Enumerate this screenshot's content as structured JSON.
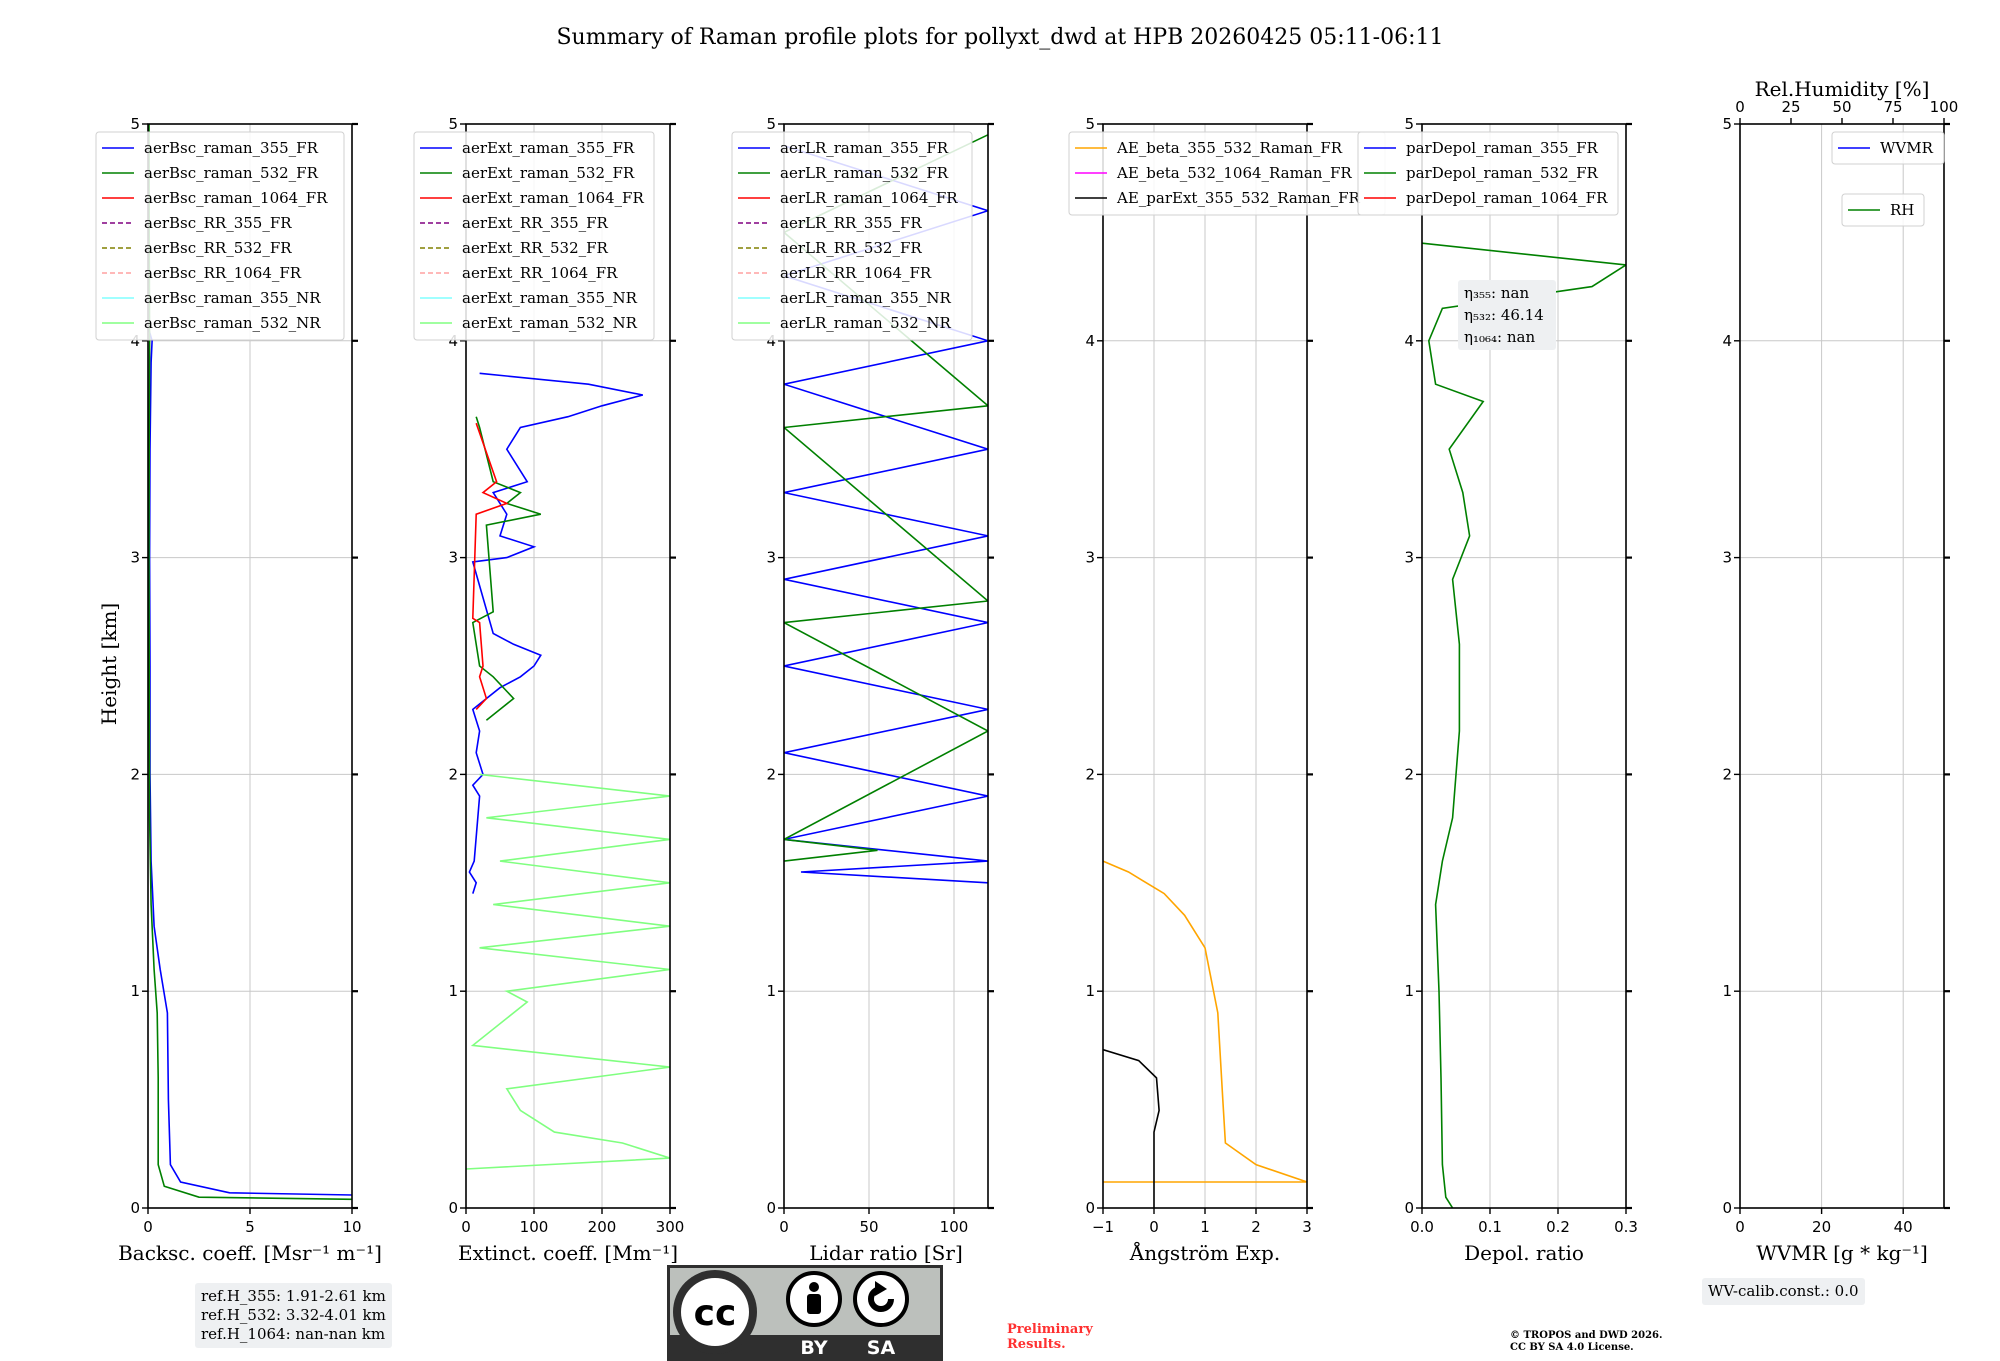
{
  "title": "Summary of Raman profile plots for pollyxt_dwd at HPB 20260425 05:11-06:11",
  "ylabel": "Height [km]",
  "yticks": [
    "0",
    "1",
    "2",
    "3",
    "4",
    "5"
  ],
  "colors": {
    "blue": "#0000ff",
    "green": "#008000",
    "red": "#ff0000",
    "purple": "#800080",
    "olive": "#808000",
    "pink": "#ffa0a0",
    "cyan": "#80ffff",
    "lightgreen": "#80ff80",
    "orange": "#ffa500",
    "magenta": "#ff00ff",
    "black": "#000000",
    "grid": "#c8c8c8"
  },
  "chart_data": [
    {
      "type": "line",
      "xlabel": "Backsc. coeff. [Msr⁻¹ m⁻¹]",
      "xlim": [
        0,
        10
      ],
      "xticks": [
        0,
        5,
        10
      ],
      "ylim": [
        0,
        5
      ],
      "legend": [
        "aerBsc_raman_355_FR",
        "aerBsc_raman_532_FR",
        "aerBsc_raman_1064_FR",
        "aerBsc_RR_355_FR",
        "aerBsc_RR_532_FR",
        "aerBsc_RR_1064_FR",
        "aerBsc_raman_355_NR",
        "aerBsc_raman_532_NR"
      ],
      "legend_styles": [
        "blue",
        "green",
        "red",
        "purple-dash",
        "olive-dash",
        "pink-dash",
        "cyan",
        "lightgreen"
      ],
      "series": [
        {
          "name": "aerBsc_raman_355_FR",
          "points": [
            [
              10,
              0.06
            ],
            [
              4,
              0.07
            ],
            [
              1.6,
              0.12
            ],
            [
              1.1,
              0.2
            ],
            [
              1.0,
              0.5
            ],
            [
              0.95,
              0.9
            ],
            [
              0.6,
              1.1
            ],
            [
              0.3,
              1.3
            ],
            [
              0.15,
              1.6
            ],
            [
              0.1,
              2.0
            ],
            [
              0.1,
              2.5
            ],
            [
              0.08,
              3.0
            ],
            [
              0.1,
              3.5
            ],
            [
              0.15,
              3.9
            ],
            [
              0.2,
              4.0
            ],
            [
              0.05,
              4.05
            ]
          ]
        },
        {
          "name": "aerBsc_raman_532_FR",
          "points": [
            [
              10,
              0.04
            ],
            [
              2.5,
              0.05
            ],
            [
              0.8,
              0.1
            ],
            [
              0.5,
              0.2
            ],
            [
              0.5,
              0.6
            ],
            [
              0.45,
              0.9
            ],
            [
              0.3,
              1.1
            ],
            [
              0.15,
              1.4
            ],
            [
              0.08,
              1.8
            ],
            [
              0.06,
              2.5
            ],
            [
              0.05,
              3.0
            ],
            [
              0.06,
              3.5
            ],
            [
              0.08,
              4.0
            ],
            [
              0.06,
              4.5
            ],
            [
              0.05,
              5.0
            ]
          ]
        }
      ]
    },
    {
      "type": "line",
      "xlabel": "Extinct. coeff. [Mm⁻¹]",
      "xlim": [
        0,
        300
      ],
      "xticks": [
        0,
        100,
        200,
        300
      ],
      "ylim": [
        0,
        5
      ],
      "legend": [
        "aerExt_raman_355_FR",
        "aerExt_raman_532_FR",
        "aerExt_raman_1064_FR",
        "aerExt_RR_355_FR",
        "aerExt_RR_532_FR",
        "aerExt_RR_1064_FR",
        "aerExt_raman_355_NR",
        "aerExt_raman_532_NR"
      ],
      "legend_styles": [
        "blue",
        "green",
        "red",
        "purple-dash",
        "olive-dash",
        "pink-dash",
        "cyan",
        "lightgreen"
      ],
      "series": [
        {
          "name": "aerExt_raman_355_FR",
          "points": [
            [
              10,
              1.45
            ],
            [
              15,
              1.5
            ],
            [
              5,
              1.55
            ],
            [
              12,
              1.6
            ],
            [
              20,
              1.9
            ],
            [
              10,
              1.95
            ],
            [
              25,
              2.0
            ],
            [
              15,
              2.1
            ],
            [
              20,
              2.2
            ],
            [
              10,
              2.3
            ],
            [
              50,
              2.4
            ],
            [
              80,
              2.45
            ],
            [
              100,
              2.5
            ],
            [
              110,
              2.55
            ],
            [
              70,
              2.6
            ],
            [
              40,
              2.65
            ],
            [
              10,
              2.98
            ],
            [
              60,
              3.0
            ],
            [
              100,
              3.05
            ],
            [
              50,
              3.1
            ],
            [
              60,
              3.2
            ],
            [
              40,
              3.3
            ],
            [
              90,
              3.35
            ],
            [
              60,
              3.5
            ],
            [
              80,
              3.6
            ],
            [
              150,
              3.65
            ],
            [
              200,
              3.7
            ],
            [
              260,
              3.75
            ],
            [
              180,
              3.8
            ],
            [
              20,
              3.85
            ]
          ]
        },
        {
          "name": "aerExt_raman_532_FR",
          "points": [
            [
              30,
              2.25
            ],
            [
              50,
              2.3
            ],
            [
              70,
              2.35
            ],
            [
              40,
              2.45
            ],
            [
              20,
              2.5
            ],
            [
              10,
              2.7
            ],
            [
              40,
              2.75
            ],
            [
              30,
              3.15
            ],
            [
              110,
              3.2
            ],
            [
              60,
              3.25
            ],
            [
              80,
              3.3
            ],
            [
              40,
              3.35
            ],
            [
              20,
              3.6
            ],
            [
              15,
              3.65
            ]
          ]
        },
        {
          "name": "aerExt_raman_1064_FR",
          "points": [
            [
              15,
              2.3
            ],
            [
              30,
              2.35
            ],
            [
              20,
              2.45
            ],
            [
              25,
              2.5
            ],
            [
              20,
              2.7
            ],
            [
              10,
              2.72
            ],
            [
              15,
              3.2
            ],
            [
              60,
              3.25
            ],
            [
              25,
              3.3
            ],
            [
              45,
              3.35
            ],
            [
              15,
              3.62
            ]
          ]
        },
        {
          "name": "aerExt_raman_532_NR",
          "points": [
            [
              0,
              0.18
            ],
            [
              300,
              0.23
            ],
            [
              230,
              0.3
            ],
            [
              130,
              0.35
            ],
            [
              80,
              0.45
            ],
            [
              60,
              0.55
            ],
            [
              300,
              0.65
            ],
            [
              10,
              0.75
            ],
            [
              90,
              0.95
            ],
            [
              60,
              1.0
            ],
            [
              300,
              1.1
            ],
            [
              20,
              1.2
            ],
            [
              300,
              1.3
            ],
            [
              40,
              1.4
            ],
            [
              300,
              1.5
            ],
            [
              50,
              1.6
            ],
            [
              300,
              1.7
            ],
            [
              30,
              1.8
            ],
            [
              300,
              1.9
            ],
            [
              20,
              2.0
            ]
          ]
        }
      ]
    },
    {
      "type": "line",
      "xlabel": "Lidar ratio [Sr]",
      "xlim": [
        0,
        120
      ],
      "xticks": [
        0,
        50,
        100
      ],
      "ylim": [
        0,
        5
      ],
      "legend": [
        "aerLR_raman_355_FR",
        "aerLR_raman_532_FR",
        "aerLR_raman_1064_FR",
        "aerLR_RR_355_FR",
        "aerLR_RR_532_FR",
        "aerLR_RR_1064_FR",
        "aerLR_raman_355_NR",
        "aerLR_raman_532_NR"
      ],
      "legend_styles": [
        "blue",
        "green",
        "red",
        "purple-dash",
        "olive-dash",
        "pink-dash",
        "cyan",
        "lightgreen"
      ],
      "series": [
        {
          "name": "aerLR_raman_355_FR",
          "points": [
            [
              120,
              1.5
            ],
            [
              10,
              1.55
            ],
            [
              120,
              1.6
            ],
            [
              0,
              1.7
            ],
            [
              120,
              1.9
            ],
            [
              0,
              2.1
            ],
            [
              120,
              2.3
            ],
            [
              0,
              2.5
            ],
            [
              120,
              2.7
            ],
            [
              0,
              2.9
            ],
            [
              120,
              3.1
            ],
            [
              0,
              3.3
            ],
            [
              120,
              3.5
            ],
            [
              0,
              3.8
            ],
            [
              120,
              4.0
            ],
            [
              0,
              4.3
            ],
            [
              120,
              4.6
            ],
            [
              0,
              4.9
            ]
          ]
        },
        {
          "name": "aerLR_raman_532_FR",
          "points": [
            [
              0,
              1.6
            ],
            [
              55,
              1.65
            ],
            [
              0,
              1.7
            ],
            [
              120,
              2.2
            ],
            [
              0,
              2.7
            ],
            [
              120,
              2.8
            ],
            [
              0,
              3.6
            ],
            [
              120,
              3.7
            ],
            [
              0,
              4.5
            ],
            [
              120,
              4.95
            ]
          ]
        }
      ]
    },
    {
      "type": "line",
      "xlabel": "Ångström Exp.",
      "xlim": [
        -1,
        3
      ],
      "xticks": [
        -1,
        0,
        1,
        2,
        3
      ],
      "ylim": [
        0,
        5
      ],
      "legend": [
        "AE_beta_355_532_Raman_FR",
        "AE_beta_532_1064_Raman_FR",
        "AE_parExt_355_532_Raman_FR"
      ],
      "legend_styles": [
        "orange",
        "magenta",
        "black"
      ],
      "series": [
        {
          "name": "AE_beta_355_532_Raman_FR",
          "points": [
            [
              -1,
              0.12
            ],
            [
              3,
              0.12
            ],
            [
              2.0,
              0.2
            ],
            [
              1.4,
              0.3
            ],
            [
              1.35,
              0.5
            ],
            [
              1.25,
              0.9
            ],
            [
              1.0,
              1.2
            ],
            [
              0.6,
              1.35
            ],
            [
              0.2,
              1.45
            ],
            [
              -0.5,
              1.55
            ],
            [
              -1,
              1.6
            ]
          ]
        },
        {
          "name": "AE_parExt_355_532_Raman_FR",
          "points": [
            [
              0,
              0
            ],
            [
              0,
              0.35
            ],
            [
              0.1,
              0.45
            ],
            [
              0.05,
              0.6
            ],
            [
              -0.3,
              0.68
            ],
            [
              -1,
              0.73
            ]
          ]
        }
      ]
    },
    {
      "type": "line",
      "xlabel": "Depol. ratio",
      "xlim": [
        0,
        0.3
      ],
      "xticks": [
        0.0,
        0.1,
        0.2,
        0.3
      ],
      "ylim": [
        0,
        5
      ],
      "legend": [
        "parDepol_raman_355_FR",
        "parDepol_raman_532_FR",
        "parDepol_raman_1064_FR"
      ],
      "legend_styles": [
        "blue",
        "green",
        "red"
      ],
      "annotations": [
        "η₃₅₅: nan",
        "η₅₃₂: 46.14",
        "η₁₀₆₄: nan"
      ],
      "series": [
        {
          "name": "parDepol_raman_532_FR",
          "points": [
            [
              0.045,
              0
            ],
            [
              0.035,
              0.05
            ],
            [
              0.03,
              0.2
            ],
            [
              0.028,
              0.6
            ],
            [
              0.025,
              1.0
            ],
            [
              0.02,
              1.4
            ],
            [
              0.03,
              1.6
            ],
            [
              0.045,
              1.8
            ],
            [
              0.055,
              2.2
            ],
            [
              0.055,
              2.6
            ],
            [
              0.045,
              2.9
            ],
            [
              0.07,
              3.1
            ],
            [
              0.06,
              3.3
            ],
            [
              0.04,
              3.5
            ],
            [
              0.09,
              3.72
            ],
            [
              0.02,
              3.8
            ],
            [
              0.01,
              4.0
            ],
            [
              0.03,
              4.15
            ],
            [
              0.25,
              4.25
            ],
            [
              0.3,
              4.35
            ],
            [
              0.0,
              4.45
            ]
          ]
        }
      ]
    },
    {
      "type": "line",
      "xlabel": "WVMR [g * kg⁻¹]",
      "xlim": [
        0,
        50
      ],
      "xticks": [
        0,
        20,
        40
      ],
      "ylim": [
        0,
        5
      ],
      "top_axis": {
        "label": "Rel.Humidity [%]",
        "ticks": [
          0,
          25,
          50,
          75,
          100
        ]
      },
      "legend": [
        "WVMR",
        "RH"
      ],
      "legend_styles": [
        "blue",
        "green"
      ],
      "series": []
    }
  ],
  "notes": {
    "refH": [
      "ref.H_355: 1.91-2.61 km",
      "ref.H_532: 3.32-4.01 km",
      "ref.H_1064: nan-nan km"
    ],
    "wvcalib": "WV-calib.const.: 0.0",
    "preliminary": [
      "Preliminary",
      "Results."
    ],
    "copyright": [
      "© TROPOS and DWD 2026.",
      "CC BY SA 4.0 License."
    ],
    "cc_labels": {
      "by": "BY",
      "sa": "SA"
    }
  }
}
